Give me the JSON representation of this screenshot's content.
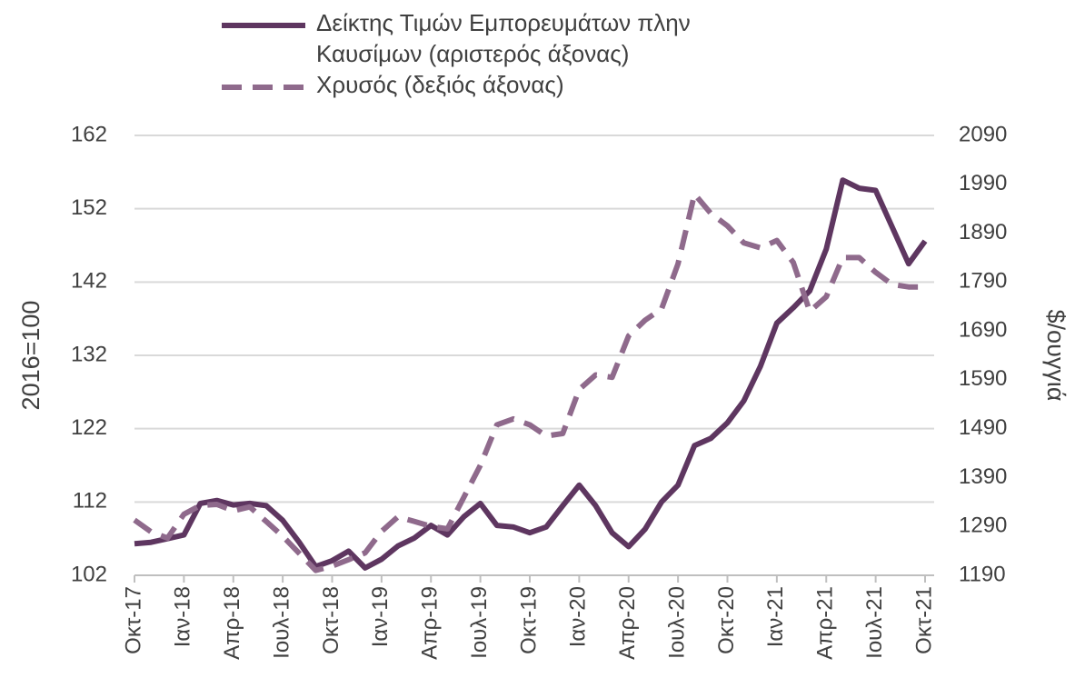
{
  "chart_data": {
    "type": "line",
    "categories": [
      "Οκτ-17",
      null,
      null,
      "Ιαν-18",
      null,
      null,
      "Απρ-18",
      null,
      null,
      "Ιουλ-18",
      null,
      null,
      "Οκτ-18",
      null,
      null,
      "Ιαν-19",
      null,
      null,
      "Απρ-19",
      null,
      null,
      "Ιουλ-19",
      null,
      null,
      "Οκτ-19",
      null,
      null,
      "Ιαν-20",
      null,
      null,
      "Απρ-20",
      null,
      null,
      "Ιουλ-20",
      null,
      null,
      "Οκτ-20",
      null,
      null,
      "Ιαν-21",
      null,
      null,
      "Απρ-21",
      null,
      null,
      "Ιουλ-21",
      null,
      null,
      "Οκτ-21"
    ],
    "series": [
      {
        "name": "Δείκτης Τιμών Εμπορευμάτων πλην Καυσίμων (αριστερός άξονας)",
        "color": "#5e3660",
        "dashed": false,
        "values": [
          106.3,
          106.5,
          107.0,
          107.5,
          111.8,
          112.2,
          111.6,
          111.8,
          111.5,
          109.5,
          106.5,
          103.2,
          104.0,
          105.3,
          103.0,
          104.2,
          106.0,
          107.1,
          108.8,
          107.5,
          110.0,
          111.8,
          108.8,
          108.6,
          107.8,
          108.6,
          111.5,
          114.3,
          111.5,
          107.8,
          105.9,
          108.3,
          112.0,
          114.3,
          119.7,
          120.7,
          122.8,
          125.8,
          130.5,
          136.4,
          138.5,
          140.8,
          146.5,
          155.9,
          154.8,
          154.5,
          149.5,
          144.5,
          147.6
        ]
      },
      {
        "name": "Χρυσός (δεξιός άξονας)",
        "color": "#8f6a8c",
        "dashed": true,
        "axis": "y2",
        "values": [
          1303,
          1279,
          1266,
          1315,
          1333,
          1335,
          1322,
          1330,
          1300,
          1270,
          1235,
          1200,
          1209,
          1222,
          1236,
          1280,
          1310,
          1300,
          1290,
          1285,
          1350,
          1415,
          1498,
          1510,
          1498,
          1475,
          1480,
          1570,
          1600,
          1595,
          1680,
          1712,
          1735,
          1827,
          1970,
          1930,
          1905,
          1870,
          1860,
          1875,
          1830,
          1730,
          1760,
          1840,
          1840,
          1810,
          1785,
          1780,
          1780
        ]
      }
    ],
    "ylabel": "2016=100",
    "y2label": "$/ουγγιά",
    "ylim": [
      102,
      162
    ],
    "yticks": [
      102,
      112,
      122,
      132,
      142,
      152,
      162
    ],
    "y2lim": [
      1190,
      2090
    ],
    "y2ticks": [
      1190,
      1290,
      1390,
      1490,
      1590,
      1690,
      1790,
      1890,
      1990,
      2090
    ],
    "grid": true,
    "legend": "top"
  }
}
